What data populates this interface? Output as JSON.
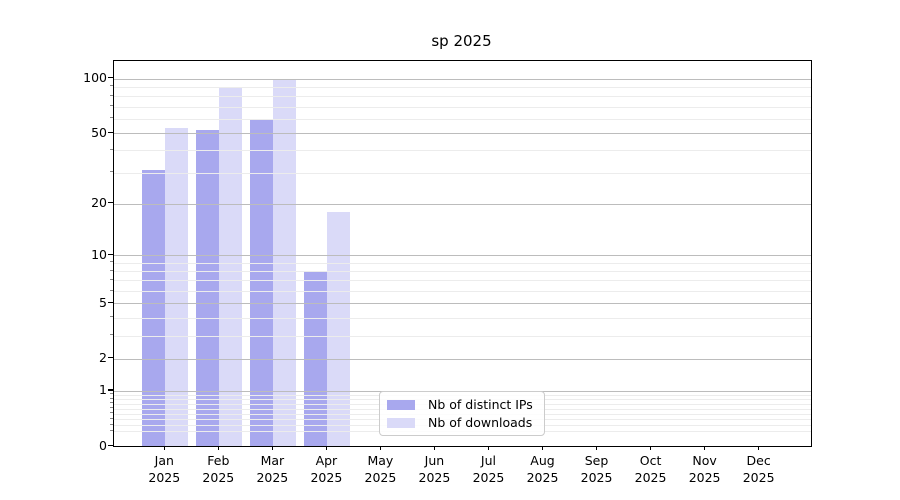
{
  "title": "sp 2025",
  "chart_data": {
    "type": "bar",
    "title": "sp 2025",
    "xlabel": "",
    "ylabel": "",
    "categories": [
      "Jan 2025",
      "Feb 2025",
      "Mar 2025",
      "Apr 2025",
      "May 2025",
      "Jun 2025",
      "Jul 2025",
      "Aug 2025",
      "Sep 2025",
      "Oct 2025",
      "Nov 2025",
      "Dec 2025"
    ],
    "x_ticks": [
      {
        "month": "Jan",
        "year": "2025"
      },
      {
        "month": "Feb",
        "year": "2025"
      },
      {
        "month": "Mar",
        "year": "2025"
      },
      {
        "month": "Apr",
        "year": "2025"
      },
      {
        "month": "May",
        "year": "2025"
      },
      {
        "month": "Jun",
        "year": "2025"
      },
      {
        "month": "Jul",
        "year": "2025"
      },
      {
        "month": "Aug",
        "year": "2025"
      },
      {
        "month": "Sep",
        "year": "2025"
      },
      {
        "month": "Oct",
        "year": "2025"
      },
      {
        "month": "Nov",
        "year": "2025"
      },
      {
        "month": "Dec",
        "year": "2025"
      }
    ],
    "series": [
      {
        "name": "Nb of distinct IPs",
        "color": "#a8a8ee",
        "values": [
          31,
          52,
          59,
          8,
          0,
          0,
          0,
          0,
          0,
          0,
          0,
          0
        ]
      },
      {
        "name": "Nb of downloads",
        "color": "#dadaf8",
        "values": [
          53,
          90,
          100,
          18,
          0,
          0,
          0,
          0,
          0,
          0,
          0,
          0
        ]
      }
    ],
    "y_axis": {
      "scale": "log1p",
      "major_ticks": [
        0,
        1,
        2,
        5,
        10,
        20,
        50,
        100
      ],
      "minor_ticks": [
        0.2,
        0.3,
        0.4,
        0.5,
        0.6,
        0.7,
        0.8,
        0.9,
        3,
        4,
        6,
        7,
        8,
        9,
        30,
        40,
        60,
        70,
        80,
        90
      ],
      "ylim": [
        0,
        125
      ]
    },
    "grid": true,
    "legend_position": "lower center"
  },
  "colors": {
    "bar_distinct_ips": "#a8a8ee",
    "bar_downloads": "#dadaf8",
    "major_grid": "#bcbcbc",
    "minor_grid": "#ececec",
    "axis_border": "#000000",
    "legend_border": "#cccccc",
    "text": "#000000",
    "background": "#ffffff"
  }
}
